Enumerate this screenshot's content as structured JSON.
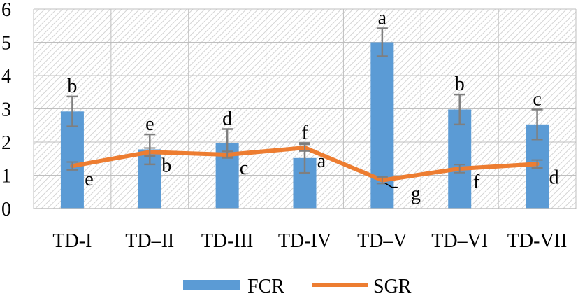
{
  "chart_data": {
    "type": "bar",
    "categories": [
      "TD-I",
      "TD–II",
      "TD-III",
      "TD-IV",
      "TD–V",
      "TD–VI",
      "TD-VII"
    ],
    "ylim": [
      0,
      6
    ],
    "yticks": [
      "0",
      "1",
      "2",
      "3",
      "4",
      "5",
      "6"
    ],
    "grid": true,
    "legend_position": "bottom",
    "series": [
      {
        "name": "FCR",
        "type": "bar",
        "color": "#5B9BD5",
        "values": [
          2.92,
          1.78,
          1.97,
          1.52,
          5.0,
          2.98,
          2.53
        ],
        "error": [
          0.45,
          0.45,
          0.42,
          0.45,
          0.42,
          0.45,
          0.45
        ],
        "letters": [
          "b",
          "e",
          "d",
          "f",
          "a",
          "b",
          "c"
        ]
      },
      {
        "name": "SGR",
        "type": "line",
        "color": "#ED7D31",
        "values": [
          1.28,
          1.7,
          1.62,
          1.83,
          0.85,
          1.2,
          1.34
        ],
        "error": [
          0.12,
          0.12,
          0.1,
          0.1,
          0.1,
          0.12,
          0.12
        ],
        "letters": [
          "e",
          "b",
          "c",
          "a",
          "g",
          "f",
          "d"
        ]
      }
    ]
  }
}
